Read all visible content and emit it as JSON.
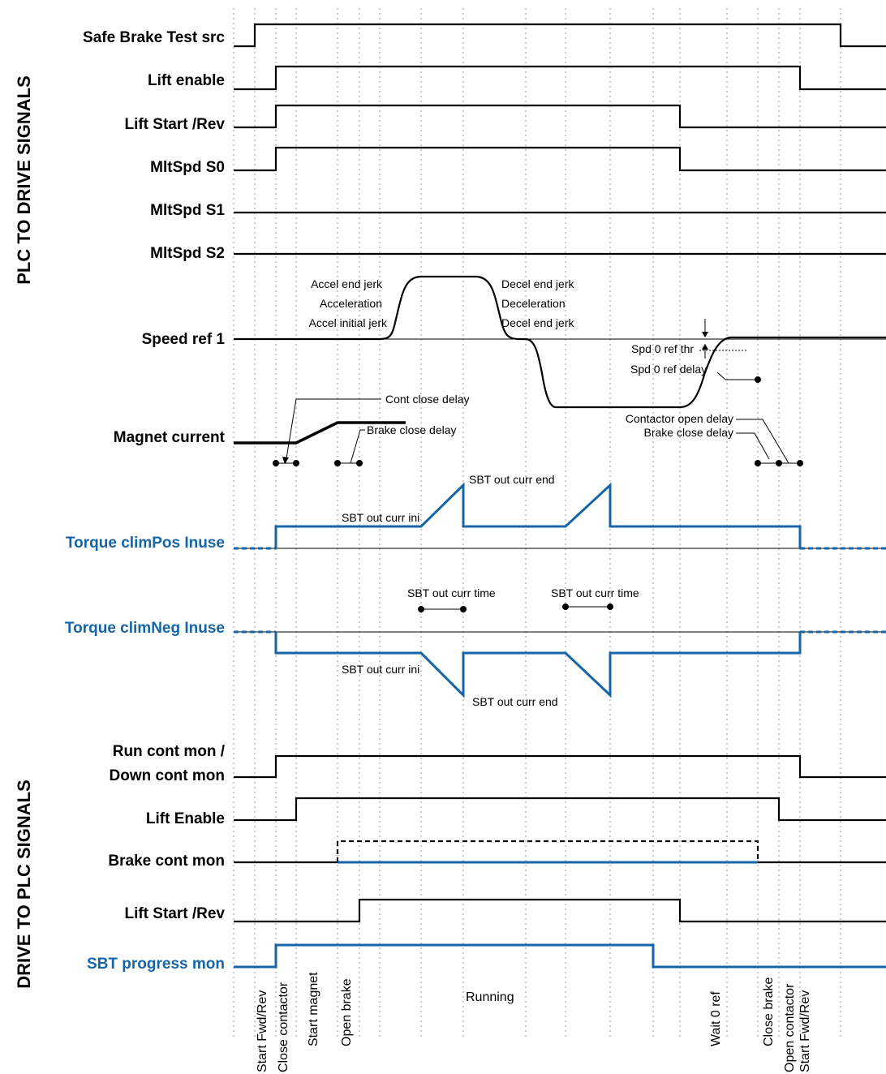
{
  "sections": {
    "plc_to_drive": "PLC TO DRIVE SIGNALS",
    "drive_to_plc": "DRIVE  TO PLC SIGNALS"
  },
  "signals": {
    "safe_brake_test_src": "Safe Brake Test src",
    "lift_enable_in": "Lift enable",
    "lift_start_rev_in": "Lift Start /Rev",
    "mltspd_s0": "MltSpd S0",
    "mltspd_s1": "MltSpd S1",
    "mltspd_s2": "MltSpd S2",
    "speed_ref_1": "Speed ref 1",
    "magnet_current": "Magnet current",
    "torque_climpos": "Torque climPos Inuse",
    "torque_climneg": "Torque climNeg Inuse",
    "run_cont_mon_1": "Run cont mon /",
    "run_cont_mon_2": "Down cont mon",
    "lift_enable_out": "Lift Enable",
    "brake_cont_mon": "Brake cont mon",
    "lift_start_rev_out": "Lift Start /Rev",
    "sbt_progress_mon": "SBT progress mon"
  },
  "annotations": {
    "accel_end_jerk": "Accel end jerk",
    "acceleration": "Acceleration",
    "accel_initial_jerk": "Accel initial jerk",
    "decel_end_jerk_top": "Decel end jerk",
    "deceleration": "Deceleration",
    "decel_end_jerk_bottom": "Decel end jerk",
    "spd0_ref_thr": "Spd 0 ref thr",
    "spd0_ref_delay": "Spd 0 ref delay",
    "cont_close_delay": "Cont close delay",
    "brake_close_delay_1": "Brake close delay",
    "contactor_open_delay": "Contactor open delay",
    "brake_close_delay_2": "Brake close delay",
    "sbt_out_curr_end_pos": "SBT out curr end",
    "sbt_out_curr_ini_pos": "SBT out curr ini",
    "sbt_out_curr_time_1": "SBT out curr time",
    "sbt_out_curr_time_2": "SBT out curr time",
    "sbt_out_curr_ini_neg": "SBT out curr ini",
    "sbt_out_curr_end_neg": "SBT out curr end"
  },
  "phases": {
    "start_fwd_rev_1": "Start Fwd/Rev",
    "close_contactor": "Close contactor",
    "start_magnet": "Start magnet",
    "open_brake": "Open brake",
    "running": "Running",
    "wait_0_ref": "Wait 0 ref",
    "close_brake": "Close brake",
    "open_contactor": "Open contactor",
    "start_fwd_rev_2": "Start Fwd/Rev"
  },
  "colors": {
    "signal_black": "#000000",
    "signal_blue": "#1565a8",
    "grid_gray": "#9a9a9a"
  }
}
